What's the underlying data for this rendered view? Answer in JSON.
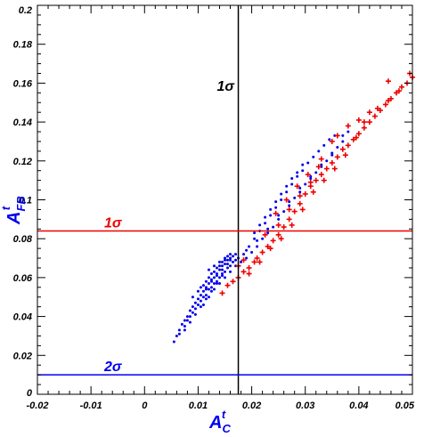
{
  "chart_data": {
    "type": "scatter",
    "title": "",
    "xlabel": {
      "main": "A",
      "sub": "C",
      "sup": "t"
    },
    "ylabel": {
      "main": "A",
      "sub": "FB",
      "sup": "t"
    },
    "xlim": [
      -0.02,
      0.05
    ],
    "ylim": [
      0,
      0.2
    ],
    "x_ticks": [
      "-0.02",
      "-0.01",
      "0",
      "0.01",
      "0.02",
      "0.03",
      "0.04",
      "0.05"
    ],
    "y_ticks": [
      "0",
      "0.02",
      "0.04",
      "0.06",
      "0.08",
      "0.1",
      "0.12",
      "0.14",
      "0.16",
      "0.18",
      "0.2"
    ],
    "colors": {
      "blue": "#0000ee",
      "red": "#ee0000",
      "black": "#000000"
    },
    "reference_lines": [
      {
        "orientation": "vertical",
        "value": 0.0175,
        "color": "#000000",
        "label": "1σ"
      },
      {
        "orientation": "horizontal",
        "value": 0.084,
        "color": "#ee0000",
        "label": "1σ"
      },
      {
        "orientation": "horizontal",
        "value": 0.01,
        "color": "#0000ee",
        "label": "2σ"
      }
    ],
    "series": [
      {
        "marker": "dot",
        "color": "#0000ee",
        "points": [
          [
            0.0055,
            0.027
          ],
          [
            0.006,
            0.03
          ],
          [
            0.0065,
            0.033
          ],
          [
            0.007,
            0.036
          ],
          [
            0.0075,
            0.038
          ],
          [
            0.008,
            0.04
          ],
          [
            0.0085,
            0.043
          ],
          [
            0.009,
            0.045
          ],
          [
            0.0095,
            0.047
          ],
          [
            0.01,
            0.049
          ],
          [
            0.0105,
            0.051
          ],
          [
            0.011,
            0.053
          ],
          [
            0.0115,
            0.055
          ],
          [
            0.012,
            0.057
          ],
          [
            0.0125,
            0.059
          ],
          [
            0.013,
            0.06
          ],
          [
            0.0135,
            0.062
          ],
          [
            0.014,
            0.064
          ],
          [
            0.0145,
            0.066
          ],
          [
            0.015,
            0.067
          ],
          [
            0.0155,
            0.069
          ],
          [
            0.016,
            0.07
          ],
          [
            0.0165,
            0.071
          ],
          [
            0.017,
            0.072
          ],
          [
            0.0075,
            0.033
          ],
          [
            0.0085,
            0.037
          ],
          [
            0.0095,
            0.041
          ],
          [
            0.0105,
            0.045
          ],
          [
            0.0115,
            0.049
          ],
          [
            0.0125,
            0.053
          ],
          [
            0.0135,
            0.057
          ],
          [
            0.0145,
            0.061
          ],
          [
            0.009,
            0.05
          ],
          [
            0.01,
            0.053
          ],
          [
            0.011,
            0.056
          ],
          [
            0.012,
            0.06
          ],
          [
            0.013,
            0.063
          ],
          [
            0.014,
            0.066
          ],
          [
            0.015,
            0.069
          ],
          [
            0.016,
            0.072
          ],
          [
            0.0105,
            0.055
          ],
          [
            0.0115,
            0.058
          ],
          [
            0.0125,
            0.062
          ],
          [
            0.0135,
            0.065
          ],
          [
            0.0145,
            0.068
          ],
          [
            0.0155,
            0.071
          ],
          [
            0.0105,
            0.048
          ],
          [
            0.0115,
            0.051
          ],
          [
            0.0125,
            0.055
          ],
          [
            0.0135,
            0.058
          ],
          [
            0.0145,
            0.062
          ],
          [
            0.0155,
            0.065
          ],
          [
            0.0165,
            0.068
          ],
          [
            0.011,
            0.046
          ],
          [
            0.012,
            0.05
          ],
          [
            0.013,
            0.054
          ],
          [
            0.014,
            0.057
          ],
          [
            0.015,
            0.06
          ],
          [
            0.016,
            0.063
          ],
          [
            0.017,
            0.066
          ],
          [
            0.018,
            0.068
          ],
          [
            0.019,
            0.07
          ],
          [
            0.02,
            0.073
          ],
          [
            0.021,
            0.076
          ],
          [
            0.022,
            0.08
          ],
          [
            0.023,
            0.083
          ],
          [
            0.024,
            0.086
          ],
          [
            0.025,
            0.09
          ],
          [
            0.026,
            0.094
          ],
          [
            0.027,
            0.097
          ],
          [
            0.028,
            0.101
          ],
          [
            0.029,
            0.104
          ],
          [
            0.03,
            0.108
          ],
          [
            0.031,
            0.111
          ],
          [
            0.032,
            0.114
          ],
          [
            0.033,
            0.117
          ],
          [
            0.034,
            0.12
          ],
          [
            0.035,
            0.123
          ],
          [
            0.036,
            0.127
          ],
          [
            0.037,
            0.13
          ],
          [
            0.0185,
            0.072
          ],
          [
            0.0195,
            0.076
          ],
          [
            0.0205,
            0.08
          ],
          [
            0.0215,
            0.084
          ],
          [
            0.0225,
            0.088
          ],
          [
            0.0235,
            0.092
          ],
          [
            0.0245,
            0.096
          ],
          [
            0.0255,
            0.1
          ],
          [
            0.0265,
            0.104
          ],
          [
            0.0275,
            0.108
          ],
          [
            0.0285,
            0.112
          ],
          [
            0.0295,
            0.115
          ],
          [
            0.0305,
            0.119
          ],
          [
            0.0315,
            0.122
          ],
          [
            0.0325,
            0.125
          ],
          [
            0.0335,
            0.128
          ],
          [
            0.0345,
            0.131
          ],
          [
            0.0355,
            0.133
          ],
          [
            0.0175,
            0.07
          ],
          [
            0.019,
            0.074
          ],
          [
            0.021,
            0.079
          ],
          [
            0.023,
            0.085
          ],
          [
            0.025,
            0.092
          ],
          [
            0.027,
            0.099
          ],
          [
            0.029,
            0.106
          ],
          [
            0.031,
            0.112
          ],
          [
            0.033,
            0.118
          ],
          [
            0.035,
            0.124
          ],
          [
            0.037,
            0.133
          ],
          [
            0.038,
            0.135
          ],
          [
            0.012,
            0.064
          ],
          [
            0.013,
            0.066
          ],
          [
            0.014,
            0.068
          ],
          [
            0.015,
            0.07
          ],
          [
            0.016,
            0.069
          ],
          [
            0.0155,
            0.067
          ],
          [
            0.0145,
            0.064
          ],
          [
            0.0135,
            0.061
          ],
          [
            0.0125,
            0.058
          ],
          [
            0.0115,
            0.054
          ],
          [
            0.0095,
            0.044
          ],
          [
            0.0085,
            0.04
          ],
          [
            0.0075,
            0.035
          ],
          [
            0.0065,
            0.031
          ],
          [
            0.008,
            0.038
          ],
          [
            0.009,
            0.042
          ],
          [
            0.01,
            0.046
          ],
          [
            0.011,
            0.05
          ],
          [
            0.012,
            0.054
          ],
          [
            0.013,
            0.057
          ],
          [
            0.014,
            0.06
          ],
          [
            0.015,
            0.063
          ],
          [
            0.016,
            0.066
          ],
          [
            0.017,
            0.069
          ],
          [
            0.0205,
            0.083
          ],
          [
            0.0215,
            0.087
          ],
          [
            0.0225,
            0.091
          ],
          [
            0.0235,
            0.095
          ],
          [
            0.0245,
            0.099
          ],
          [
            0.0255,
            0.103
          ],
          [
            0.0265,
            0.107
          ],
          [
            0.0275,
            0.111
          ],
          [
            0.0285,
            0.114
          ],
          [
            0.0295,
            0.118
          ]
        ]
      },
      {
        "marker": "plus",
        "color": "#ee0000",
        "points": [
          [
            0.0145,
            0.052
          ],
          [
            0.0155,
            0.056
          ],
          [
            0.0165,
            0.058
          ],
          [
            0.0175,
            0.06
          ],
          [
            0.0185,
            0.063
          ],
          [
            0.0195,
            0.065
          ],
          [
            0.0205,
            0.068
          ],
          [
            0.021,
            0.07
          ],
          [
            0.022,
            0.073
          ],
          [
            0.023,
            0.076
          ],
          [
            0.024,
            0.079
          ],
          [
            0.025,
            0.082
          ],
          [
            0.026,
            0.086
          ],
          [
            0.027,
            0.09
          ],
          [
            0.028,
            0.094
          ],
          [
            0.029,
            0.098
          ],
          [
            0.03,
            0.103
          ],
          [
            0.031,
            0.107
          ],
          [
            0.032,
            0.11
          ],
          [
            0.033,
            0.113
          ],
          [
            0.034,
            0.116
          ],
          [
            0.035,
            0.119
          ],
          [
            0.036,
            0.122
          ],
          [
            0.037,
            0.126
          ],
          [
            0.038,
            0.128
          ],
          [
            0.039,
            0.131
          ],
          [
            0.04,
            0.134
          ],
          [
            0.041,
            0.137
          ],
          [
            0.042,
            0.14
          ],
          [
            0.043,
            0.143
          ],
          [
            0.044,
            0.146
          ],
          [
            0.045,
            0.149
          ],
          [
            0.046,
            0.152
          ],
          [
            0.047,
            0.155
          ],
          [
            0.048,
            0.158
          ],
          [
            0.049,
            0.16
          ],
          [
            0.05,
            0.163
          ],
          [
            0.0195,
            0.062
          ],
          [
            0.0215,
            0.068
          ],
          [
            0.0235,
            0.075
          ],
          [
            0.0255,
            0.08
          ],
          [
            0.0275,
            0.087
          ],
          [
            0.0295,
            0.095
          ],
          [
            0.0315,
            0.104
          ],
          [
            0.0335,
            0.11
          ],
          [
            0.0355,
            0.116
          ],
          [
            0.0375,
            0.123
          ],
          [
            0.0395,
            0.132
          ],
          [
            0.041,
            0.14
          ],
          [
            0.0435,
            0.147
          ],
          [
            0.0455,
            0.151
          ],
          [
            0.0475,
            0.156
          ],
          [
            0.025,
            0.087
          ],
          [
            0.027,
            0.095
          ],
          [
            0.029,
            0.102
          ],
          [
            0.031,
            0.109
          ],
          [
            0.033,
            0.121
          ],
          [
            0.035,
            0.13
          ],
          [
            0.036,
            0.133
          ],
          [
            0.038,
            0.138
          ],
          [
            0.04,
            0.141
          ],
          [
            0.042,
            0.145
          ],
          [
            0.0455,
            0.161
          ],
          [
            0.0495,
            0.165
          ],
          [
            0.0175,
            0.066
          ],
          [
            0.0185,
            0.069
          ],
          [
            0.0225,
            0.082
          ],
          [
            0.0245,
            0.093
          ],
          [
            0.0265,
            0.1
          ],
          [
            0.0285,
            0.107
          ],
          [
            0.0305,
            0.113
          ],
          [
            0.0325,
            0.117
          ]
        ]
      }
    ]
  }
}
